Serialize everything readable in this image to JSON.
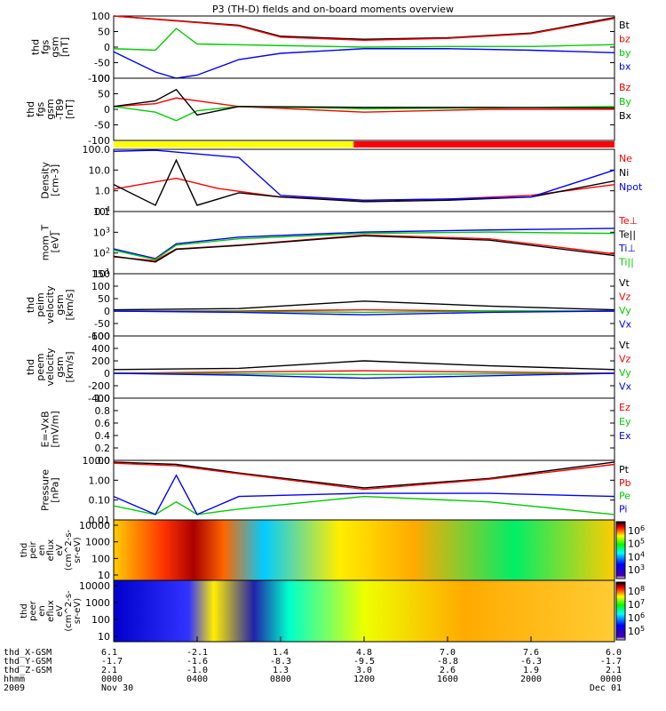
{
  "chart_data": {
    "type": "line",
    "title": "P3 (TH-D) fields and on-board moments overview",
    "time_range": [
      "0000",
      "0000"
    ],
    "panels": [
      {
        "id": "fgs",
        "ylabel": "thd\nfgs\ngsm\n[nT]",
        "ylim": [
          -100,
          100
        ],
        "scale": "linear",
        "yticks": [
          "100",
          "50",
          "0",
          "-50",
          "-100"
        ],
        "series": [
          {
            "name": "Bt",
            "color": "#000000",
            "hours": [
              0,
              6,
              8,
              12,
              16,
              20,
              24
            ],
            "values": [
              100,
              70,
              35,
              25,
              30,
              45,
              95
            ]
          },
          {
            "name": "bz",
            "color": "#ff0000",
            "hours": [
              0,
              6,
              8,
              12,
              16,
              20,
              24
            ],
            "values": [
              100,
              68,
              32,
              22,
              28,
              43,
              92
            ]
          },
          {
            "name": "by",
            "color": "#00cc00",
            "hours": [
              0,
              2,
              3,
              4,
              8,
              12,
              16,
              20,
              24
            ],
            "values": [
              -5,
              -10,
              60,
              10,
              5,
              0,
              2,
              2,
              8
            ]
          },
          {
            "name": "bx",
            "color": "#0000ff",
            "hours": [
              0,
              2,
              3,
              4,
              6,
              8,
              12,
              16,
              20,
              24
            ],
            "values": [
              -15,
              -80,
              -100,
              -90,
              -40,
              -20,
              -5,
              -5,
              -10,
              -18
            ]
          }
        ]
      },
      {
        "id": "fgs_t89",
        "ylabel": "thd\nfgs\ngsm\n-T89\n[nT]",
        "ylim": [
          -120,
          100
        ],
        "scale": "linear",
        "yticks": [
          "100",
          "50",
          "0",
          "-50",
          "-100"
        ],
        "series": [
          {
            "name": "Bz",
            "color": "#ff0000",
            "hours": [
              0,
              2,
              3,
              4,
              6,
              12,
              18,
              24
            ],
            "values": [
              0,
              10,
              30,
              20,
              0,
              -20,
              -10,
              -10
            ]
          },
          {
            "name": "By",
            "color": "#00cc00",
            "hours": [
              0,
              2,
              3,
              4,
              6,
              12,
              18,
              24
            ],
            "values": [
              0,
              -20,
              -50,
              -15,
              0,
              -8,
              -5,
              0
            ]
          },
          {
            "name": "Bx",
            "color": "#000000",
            "hours": [
              0,
              2,
              3,
              4,
              6,
              12,
              18,
              24
            ],
            "values": [
              0,
              20,
              60,
              -30,
              0,
              -3,
              -3,
              -5
            ]
          }
        ]
      },
      {
        "id": "density",
        "ylabel": "Density\n[cm-3]",
        "ylim": [
          0.1,
          100
        ],
        "scale": "log",
        "yticks": [
          "100.0",
          "10.0",
          "1.0",
          "0.1"
        ],
        "series": [
          {
            "name": "Ne",
            "color": "#ff0000",
            "hours": [
              0,
              3,
              5,
              8,
              12,
              16,
              20,
              24
            ],
            "values": [
              1.2,
              4,
              1.3,
              0.5,
              0.35,
              0.4,
              0.6,
              2
            ]
          },
          {
            "name": "Ni",
            "color": "#000000",
            "hours": [
              0,
              2,
              3,
              4,
              6,
              8,
              12,
              16,
              20,
              24
            ],
            "values": [
              2,
              0.2,
              30,
              0.2,
              0.8,
              0.5,
              0.3,
              0.35,
              0.5,
              3
            ]
          },
          {
            "name": "Npot",
            "color": "#0000ff",
            "hours": [
              0,
              2,
              4,
              6,
              8,
              12,
              16,
              20,
              24
            ],
            "values": [
              80,
              90,
              60,
              40,
              0.6,
              0.35,
              0.4,
              0.5,
              10
            ]
          }
        ]
      },
      {
        "id": "temperature",
        "ylabel": "mom_T\n[eV]",
        "ylim": [
          10,
          50000
        ],
        "scale": "log",
        "yticks": [
          "10^4",
          "10^3",
          "10^2",
          "10^1"
        ],
        "series": [
          {
            "name": "Te⊥",
            "color": "#ff0000",
            "hours": [
              0,
              2,
              3,
              6,
              12,
              18,
              24
            ],
            "values": [
              100,
              60,
              300,
              500,
              2000,
              1200,
              150
            ]
          },
          {
            "name": "Te||",
            "color": "#000000",
            "hours": [
              0,
              2,
              3,
              6,
              12,
              18,
              24
            ],
            "values": [
              110,
              50,
              280,
              480,
              1800,
              1000,
              120
            ]
          },
          {
            "name": "Ti⊥",
            "color": "#0000ff",
            "hours": [
              0,
              2,
              3,
              6,
              12,
              18,
              24
            ],
            "values": [
              300,
              80,
              600,
              1500,
              3000,
              4000,
              5000
            ]
          },
          {
            "name": "Ti||",
            "color": "#00cc00",
            "hours": [
              0,
              2,
              3,
              6,
              12,
              18,
              24
            ],
            "values": [
              250,
              70,
              500,
              1200,
              2500,
              3000,
              2500
            ]
          }
        ]
      },
      {
        "id": "peim_velocity",
        "ylabel": "thd\npeim\nvelocity\ngsm\n[km/s]",
        "ylim": [
          -100,
          150
        ],
        "scale": "linear",
        "yticks": [
          "150",
          "100",
          "50",
          "0",
          "-50",
          "-100"
        ],
        "series": [
          {
            "name": "Vt",
            "color": "#000000",
            "hours": [
              0,
              6,
              12,
              18,
              24
            ],
            "values": [
              5,
              10,
              40,
              20,
              5
            ]
          },
          {
            "name": "Vz",
            "color": "#ff0000",
            "hours": [
              0,
              6,
              12,
              18,
              24
            ],
            "values": [
              0,
              0,
              5,
              0,
              0
            ]
          },
          {
            "name": "Vy",
            "color": "#00cc00",
            "hours": [
              0,
              6,
              12,
              18,
              24
            ],
            "values": [
              0,
              -2,
              -5,
              0,
              0
            ]
          },
          {
            "name": "Vx",
            "color": "#0000ff",
            "hours": [
              0,
              6,
              12,
              18,
              24
            ],
            "values": [
              0,
              -5,
              -15,
              -5,
              0
            ]
          }
        ]
      },
      {
        "id": "peem_velocity",
        "ylabel": "thd\npeem\nvelocity\ngsm\n[km/s]",
        "ylim": [
          -400,
          600
        ],
        "scale": "linear",
        "yticks": [
          "600",
          "400",
          "200",
          "0",
          "-200",
          "-400"
        ],
        "series": [
          {
            "name": "Vt",
            "color": "#000000",
            "hours": [
              0,
              6,
              12,
              18,
              24
            ],
            "values": [
              60,
              80,
              200,
              120,
              60
            ]
          },
          {
            "name": "Vz",
            "color": "#ff0000",
            "hours": [
              0,
              6,
              12,
              18,
              24
            ],
            "values": [
              0,
              20,
              40,
              20,
              0
            ]
          },
          {
            "name": "Vy",
            "color": "#00cc00",
            "hours": [
              0,
              6,
              12,
              18,
              24
            ],
            "values": [
              0,
              -10,
              -20,
              -10,
              0
            ]
          },
          {
            "name": "Vx",
            "color": "#0000ff",
            "hours": [
              0,
              6,
              12,
              18,
              24
            ],
            "values": [
              0,
              -30,
              -80,
              -40,
              0
            ]
          }
        ]
      },
      {
        "id": "e_field",
        "ylabel": "E=-VxB\n[mV/m]",
        "ylim": [
          0,
          1
        ],
        "scale": "linear",
        "yticks": [
          "1.0",
          "0.8",
          "0.6",
          "0.4",
          "0.2",
          "0.0"
        ],
        "series": [
          {
            "name": "Ez",
            "color": "#ff0000",
            "hours": [],
            "values": []
          },
          {
            "name": "Ey",
            "color": "#00cc00",
            "hours": [],
            "values": []
          },
          {
            "name": "Ex",
            "color": "#0000ff",
            "hours": [],
            "values": []
          }
        ]
      },
      {
        "id": "pressure",
        "ylabel": "Pressure\n[nPa]",
        "ylim": [
          0.005,
          10
        ],
        "scale": "log",
        "yticks": [
          "10.00",
          "1.00",
          "0.10",
          "0.01"
        ],
        "series": [
          {
            "name": "Pt",
            "color": "#000000",
            "hours": [
              0,
              3,
              6,
              12,
              18,
              24
            ],
            "values": [
              8,
              6,
              2,
              0.3,
              1,
              8
            ]
          },
          {
            "name": "Pb",
            "color": "#ff0000",
            "hours": [
              0,
              3,
              6,
              12,
              18,
              24
            ],
            "values": [
              7,
              5,
              1.8,
              0.25,
              0.9,
              6
            ]
          },
          {
            "name": "Pe",
            "color": "#00cc00",
            "hours": [
              0,
              2,
              3,
              4,
              6,
              12,
              18,
              24
            ],
            "values": [
              0.03,
              0.01,
              0.05,
              0.01,
              0.02,
              0.1,
              0.05,
              0.01
            ]
          },
          {
            "name": "Pi",
            "color": "#0000ff",
            "hours": [
              0,
              2,
              3,
              4,
              6,
              12,
              18,
              24
            ],
            "values": [
              0.1,
              0.01,
              1.5,
              0.01,
              0.1,
              0.15,
              0.15,
              0.1
            ]
          }
        ]
      }
    ],
    "spectrograms": [
      {
        "id": "peir_en_eflux",
        "ylabel": "thd\npeir\nen\neflux\neV\n(cm^2-s-\nsr-eV)",
        "yticks": [
          "10000",
          "1000",
          "100",
          "10"
        ],
        "colorbar_ticks": [
          "10^6",
          "10^5",
          "10^4",
          "10^3"
        ]
      },
      {
        "id": "peer_en_eflux",
        "ylabel": "thd\npeer\nen\neflux\neV\n(cm^2-s-\nsr-eV)",
        "yticks": [
          "10000",
          "1000",
          "100",
          "10"
        ],
        "colorbar_ticks": [
          "10^8",
          "10^7",
          "10^6",
          "10^5"
        ]
      }
    ],
    "mode_bar": {
      "segments": [
        {
          "from_hour": 0,
          "to_hour": 11.5,
          "color": "#ffff00"
        },
        {
          "from_hour": 11.5,
          "to_hour": 24,
          "color": "#ff0000"
        }
      ]
    },
    "x_axis": {
      "row_labels": [
        "thd_X-GSM",
        "thd_Y-GSM",
        "thd_Z-GSM",
        "hhmm",
        "2009"
      ],
      "ticks": [
        {
          "hour": 0,
          "x_gsm": "6.1",
          "y_gsm": "-1.7",
          "z_gsm": "2.1",
          "hhmm": "0000",
          "date": "Nov 30"
        },
        {
          "hour": 4,
          "x_gsm": "-2.1",
          "y_gsm": "-1.6",
          "z_gsm": "-1.0",
          "hhmm": "0400",
          "date": ""
        },
        {
          "hour": 8,
          "x_gsm": "1.4",
          "y_gsm": "-8.3",
          "z_gsm": "1.3",
          "hhmm": "0800",
          "date": ""
        },
        {
          "hour": 12,
          "x_gsm": "4.8",
          "y_gsm": "-9.5",
          "z_gsm": "3.0",
          "hhmm": "1200",
          "date": ""
        },
        {
          "hour": 16,
          "x_gsm": "7.0",
          "y_gsm": "-8.8",
          "z_gsm": "2.6",
          "hhmm": "1600",
          "date": ""
        },
        {
          "hour": 20,
          "x_gsm": "7.6",
          "y_gsm": "-6.3",
          "z_gsm": "1.9",
          "hhmm": "2000",
          "date": ""
        },
        {
          "hour": 24,
          "x_gsm": "6.0",
          "y_gsm": "-1.7",
          "z_gsm": "2.1",
          "hhmm": "0000",
          "date": "Dec 01"
        }
      ]
    }
  }
}
